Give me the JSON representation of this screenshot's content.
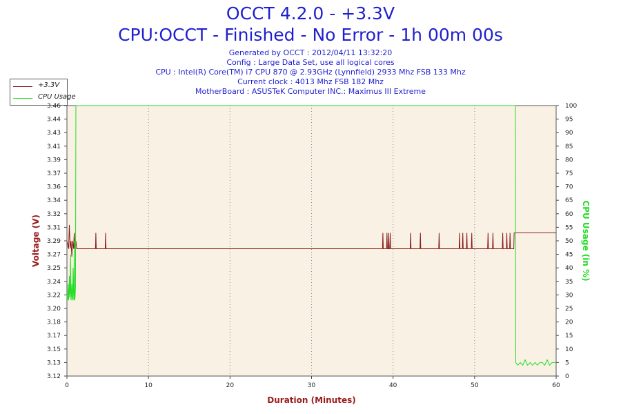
{
  "header": {
    "title": "OCCT 4.2.0 - +3.3V",
    "subtitle": "CPU:OCCT - Finished - No Error - 1h 00m 00s",
    "info_lines": [
      "Generated by OCCT : 2012/04/11 13:32:20",
      "Config : Large Data Set, use all logical cores",
      "CPU : Intel(R) Core(TM) i7 CPU 870 @ 2.93GHz (Lynnfield) 2933 Mhz FSB 133 Mhz",
      "Current clock : 4013 Mhz FSB 182 Mhz",
      "MotherBoard : ASUSTeK Computer INC.: Maximus III Extreme"
    ]
  },
  "legend": {
    "items": [
      {
        "label": "+3.3V",
        "color": "#8b1a1a"
      },
      {
        "label": "CPU Usage",
        "color": "#22dd22"
      }
    ]
  },
  "chart_data": {
    "type": "line",
    "xlabel": "Duration (Minutes)",
    "ylabel_left": "Voltage (V)",
    "ylabel_right": "CPU Usage (in %)",
    "xlim": [
      0,
      60
    ],
    "x_ticks": [
      "0",
      "10",
      "20",
      "30",
      "40",
      "50",
      "60"
    ],
    "ylim_left": [
      3.12,
      3.46
    ],
    "y_left_ticks": [
      "3.12",
      "3.13",
      "3.15",
      "3.17",
      "3.18",
      "3.20",
      "3.22",
      "3.24",
      "3.25",
      "3.27",
      "3.29",
      "3.31",
      "3.32",
      "3.34",
      "3.36",
      "3.37",
      "3.39",
      "3.41",
      "3.43",
      "3.44",
      "3.46"
    ],
    "ylim_right": [
      0,
      100
    ],
    "y_right_ticks": [
      "0",
      "5",
      "10",
      "15",
      "20",
      "25",
      "30",
      "35",
      "40",
      "45",
      "50",
      "55",
      "60",
      "65",
      "70",
      "75",
      "80",
      "85",
      "90",
      "95",
      "100"
    ],
    "grid": true,
    "legend_position": "top-left",
    "colors": {
      "plot_bg": "#f8f1e4",
      "voltage": "#8b1a1a",
      "cpu": "#22dd22",
      "grid": "#888888"
    },
    "series": [
      {
        "name": "+3.3V",
        "axis": "left",
        "x": [
          0,
          0.2,
          0.3,
          0.4,
          0.5,
          0.6,
          0.7,
          0.8,
          0.9,
          1.0,
          1.1,
          1.2,
          3.5,
          3.55,
          3.6,
          4.7,
          4.75,
          4.8,
          38.7,
          38.75,
          38.8,
          39.2,
          39.25,
          39.3,
          39.4,
          39.45,
          39.5,
          39.6,
          39.65,
          39.7,
          42.1,
          42.15,
          42.2,
          43.3,
          43.35,
          43.4,
          45.6,
          45.65,
          45.7,
          48.1,
          48.15,
          48.2,
          48.5,
          48.55,
          48.6,
          49.0,
          49.05,
          49.1,
          49.6,
          49.65,
          49.7,
          51.6,
          51.65,
          51.7,
          52.2,
          52.25,
          52.3,
          53.4,
          53.45,
          53.5,
          53.9,
          53.95,
          54.0,
          54.3,
          54.35,
          54.4,
          54.8,
          54.85,
          54.9,
          60
        ],
        "values": [
          3.29,
          3.28,
          3.31,
          3.28,
          3.29,
          3.27,
          3.29,
          3.28,
          3.3,
          3.28,
          3.29,
          3.28,
          3.28,
          3.3,
          3.28,
          3.28,
          3.3,
          3.28,
          3.28,
          3.3,
          3.28,
          3.28,
          3.3,
          3.28,
          3.28,
          3.3,
          3.28,
          3.28,
          3.3,
          3.28,
          3.28,
          3.3,
          3.28,
          3.28,
          3.3,
          3.28,
          3.28,
          3.3,
          3.28,
          3.28,
          3.3,
          3.28,
          3.28,
          3.3,
          3.28,
          3.28,
          3.3,
          3.28,
          3.28,
          3.3,
          3.28,
          3.28,
          3.3,
          3.28,
          3.28,
          3.3,
          3.28,
          3.28,
          3.3,
          3.28,
          3.28,
          3.3,
          3.28,
          3.28,
          3.3,
          3.28,
          3.28,
          3.3,
          3.3,
          3.3
        ]
      },
      {
        "name": "CPU Usage",
        "axis": "right",
        "x": [
          0,
          0.05,
          0.1,
          0.15,
          0.2,
          0.25,
          0.3,
          0.35,
          0.4,
          0.45,
          0.5,
          0.55,
          0.6,
          0.65,
          0.7,
          0.75,
          0.8,
          0.85,
          0.9,
          0.95,
          1.0,
          1.05,
          1.1,
          1.15,
          1.2,
          55.0,
          55.05,
          55.3,
          55.6,
          55.9,
          56.2,
          56.5,
          56.8,
          57.1,
          57.4,
          57.7,
          58.0,
          58.3,
          58.6,
          58.9,
          59.2,
          59.5,
          59.8,
          60
        ],
        "values": [
          30,
          28,
          29,
          34,
          28,
          31,
          37,
          29,
          31,
          45,
          28,
          30,
          34,
          28,
          29,
          40,
          31,
          28,
          50,
          28,
          29,
          33,
          100,
          100,
          100,
          100,
          5,
          4,
          5,
          4,
          6,
          4,
          5,
          4,
          5,
          4,
          5,
          5,
          4,
          6,
          4,
          5,
          5,
          5
        ]
      }
    ]
  }
}
